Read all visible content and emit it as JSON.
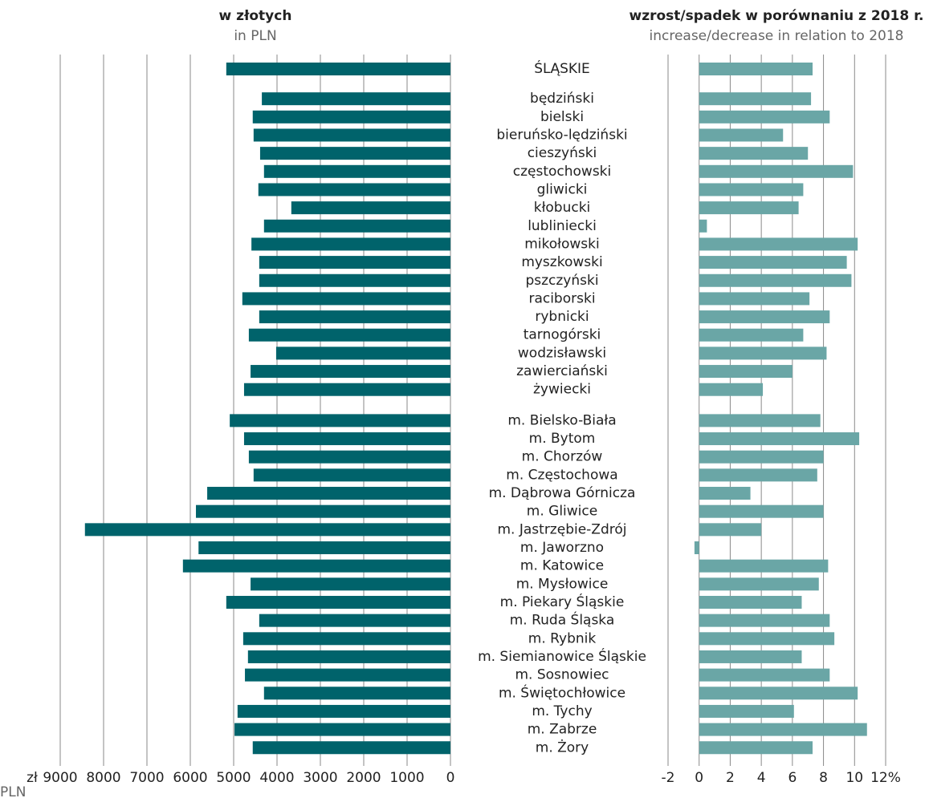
{
  "chart_data": [
    {
      "type": "hbar",
      "title": "w złotych",
      "subtitle": "in PLN",
      "unit_label": "zł",
      "unit_label_en": "PLN",
      "color": "#00636b",
      "categories": [
        "ŚLĄSKIE",
        "będziński",
        "bielski",
        "bieruńsko-lędziński",
        "cieszyński",
        "częstochowski",
        "gliwicki",
        "kłobucki",
        "lubliniecki",
        "mikołowski",
        "myszkowski",
        "pszczyński",
        "raciborski",
        "rybnicki",
        "tarnogórski",
        "wodzisławski",
        "zawierciański",
        "żywiecki",
        "m. Bielsko-Biała",
        "m. Bytom",
        "m. Chorzów",
        "m. Częstochowa",
        "m. Dąbrowa Górnicza",
        "m. Gliwice",
        "m. Jastrzębie-Zdrój",
        "m. Jaworzno",
        "m. Katowice",
        "m. Mysłowice",
        "m. Piekary Śląskie",
        "m. Ruda Śląska",
        "m. Rybnik",
        "m. Siemianowice Śląskie",
        "m. Sosnowiec",
        "m. Świętochłowice",
        "m. Tychy",
        "m. Zabrze",
        "m. Żory"
      ],
      "values": [
        5170,
        4350,
        4560,
        4540,
        4390,
        4300,
        4430,
        3670,
        4300,
        4590,
        4410,
        4410,
        4800,
        4410,
        4650,
        4020,
        4610,
        4760,
        5090,
        4760,
        4650,
        4540,
        5610,
        5870,
        8430,
        5810,
        6170,
        4610,
        5170,
        4410,
        4780,
        4670,
        4740,
        4300,
        4910,
        4980,
        4560
      ],
      "xlim": [
        9000,
        0
      ],
      "xticks": [
        9000,
        8000,
        7000,
        6000,
        5000,
        4000,
        3000,
        2000,
        1000,
        0
      ],
      "grid": true
    },
    {
      "type": "hbar",
      "title": "wzrost/spadek w porównaniu z 2018 r.",
      "subtitle": "increase/decrease in relation to 2018",
      "color": "#6aa6a6",
      "values": [
        7.3,
        7.2,
        8.4,
        5.4,
        7.0,
        9.9,
        6.7,
        6.4,
        0.5,
        10.2,
        9.5,
        9.8,
        7.1,
        8.4,
        6.7,
        8.2,
        6.0,
        4.1,
        7.8,
        10.3,
        8.0,
        7.6,
        3.3,
        8.0,
        4.0,
        -0.3,
        8.3,
        7.7,
        6.6,
        8.4,
        8.7,
        6.6,
        8.4,
        10.2,
        6.1,
        10.8,
        7.3
      ],
      "xlim": [
        -2,
        12
      ],
      "xticks": [
        -2,
        0,
        2,
        4,
        6,
        8,
        10,
        {
          "value": 12,
          "label": "12%"
        }
      ],
      "grid": true
    }
  ]
}
